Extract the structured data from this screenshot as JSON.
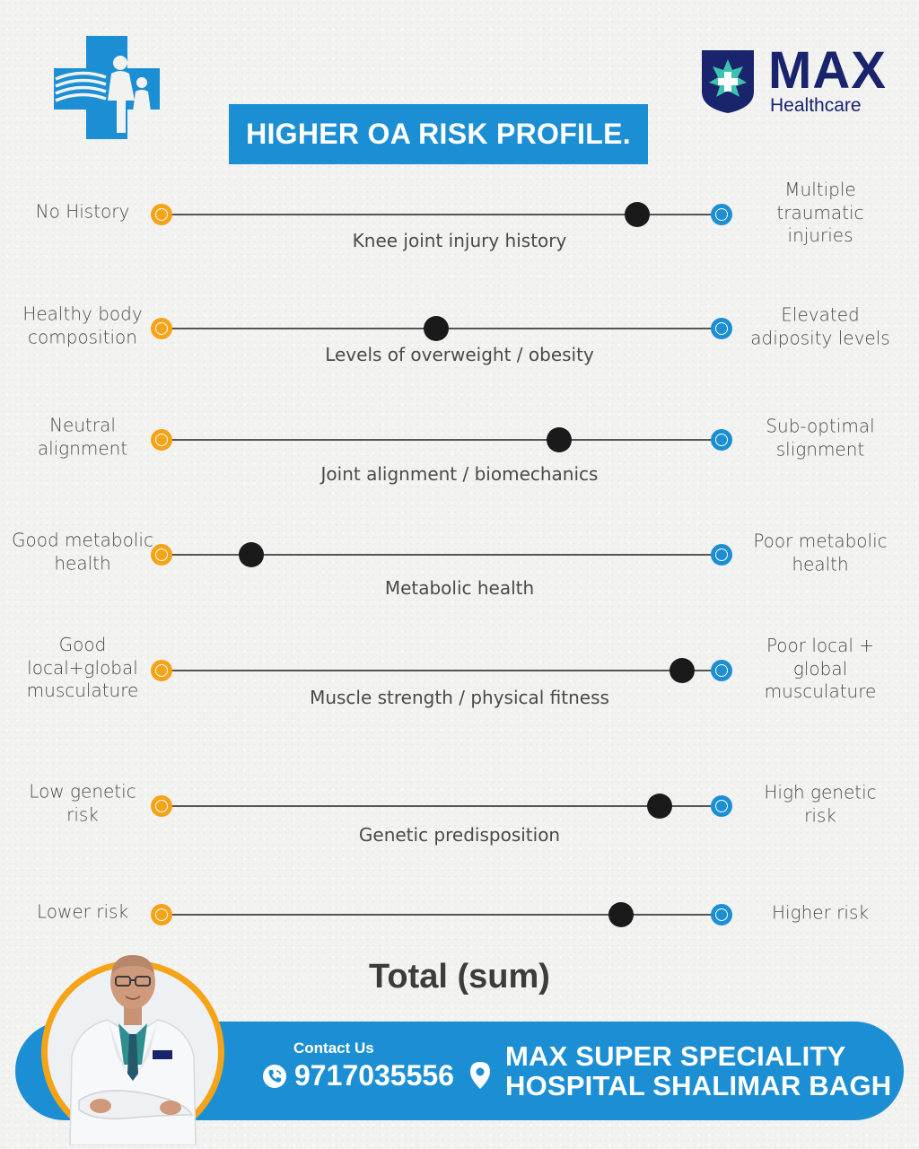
{
  "header": {
    "left_logo_icon": "medical-cross-family-icon",
    "brand_name": "MAX",
    "brand_sub": "Healthcare",
    "title": "HIGHER OA RISK PROFILE."
  },
  "colors": {
    "accent_blue": "#1c8fd4",
    "accent_orange": "#f5a317",
    "navy": "#19246c",
    "marker": "#1a1a1a"
  },
  "rows": [
    {
      "left": "No History",
      "center": "Knee joint injury history",
      "right": "Multiple\ntraumatic injuries",
      "level": 0.85
    },
    {
      "left": "Healthy body\ncomposition",
      "center": "Levels of overweight / obesity",
      "right": "Elevated\nadiposity levels",
      "level": 0.49
    },
    {
      "left": "Neutral\nalignment",
      "center": "Joint alignment / biomechanics",
      "right": "Sub-optimal\nslignment",
      "level": 0.71
    },
    {
      "left": "Good metabolic\nhealth",
      "center": "Metabolic health",
      "right": "Poor metabolic\nhealth",
      "level": 0.16
    },
    {
      "left": "Good\nlocal+global\nmusculature",
      "center": "Muscle strength / physical fitness",
      "right": "Poor local +\nglobal\nmusculature",
      "level": 0.93
    },
    {
      "left": "Low genetic\nrisk",
      "center": "Genetic predisposition",
      "right": "High genetic\nrisk",
      "level": 0.89
    },
    {
      "left": "Lower risk",
      "center": "",
      "right": "Higher risk",
      "level": 0.82
    }
  ],
  "total_label": "Total (sum)",
  "footer": {
    "contact_label": "Contact Us",
    "phone": "9717035556",
    "phone_icon": "phone-icon",
    "location_icon": "location-pin-icon",
    "hospital_line1": "MAX SUPER SPECIALITY",
    "hospital_line2": "HOSPITAL SHALIMAR BAGH"
  }
}
